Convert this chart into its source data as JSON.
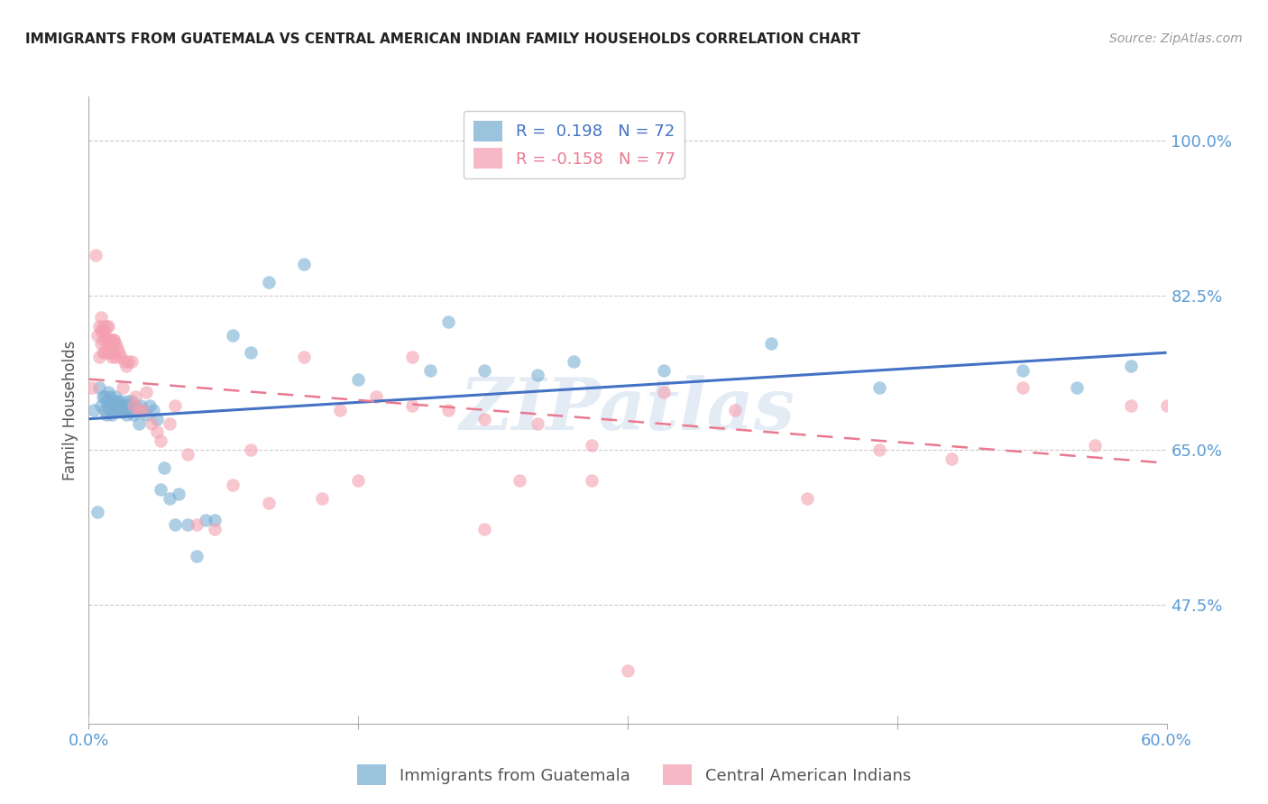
{
  "title": "IMMIGRANTS FROM GUATEMALA VS CENTRAL AMERICAN INDIAN FAMILY HOUSEHOLDS CORRELATION CHART",
  "source": "Source: ZipAtlas.com",
  "ylabel": "Family Households",
  "yticks_labels": [
    "100.0%",
    "82.5%",
    "65.0%",
    "47.5%"
  ],
  "ytick_vals": [
    1.0,
    0.825,
    0.65,
    0.475
  ],
  "ymin": 0.34,
  "ymax": 1.05,
  "xmin": 0.0,
  "xmax": 0.6,
  "xtick_vals": [
    0.0,
    0.15,
    0.3,
    0.45,
    0.6
  ],
  "xtick_labels": [
    "0.0%",
    "",
    "",
    "",
    "60.0%"
  ],
  "blue_color": "#7BAFD4",
  "pink_color": "#F4A0B0",
  "line_blue": "#4472C4",
  "line_pink": "#E97A90",
  "blue_line_x0": 0.0,
  "blue_line_x1": 0.6,
  "blue_line_y0": 0.685,
  "blue_line_y1": 0.76,
  "pink_line_x0": 0.0,
  "pink_line_x1": 0.6,
  "pink_line_y0": 0.73,
  "pink_line_y1": 0.635,
  "blue_scatter_x": [
    0.003,
    0.005,
    0.006,
    0.007,
    0.008,
    0.009,
    0.009,
    0.01,
    0.01,
    0.011,
    0.011,
    0.012,
    0.012,
    0.012,
    0.013,
    0.013,
    0.014,
    0.014,
    0.015,
    0.015,
    0.016,
    0.016,
    0.016,
    0.017,
    0.017,
    0.018,
    0.018,
    0.019,
    0.019,
    0.02,
    0.02,
    0.021,
    0.022,
    0.022,
    0.023,
    0.023,
    0.024,
    0.025,
    0.026,
    0.027,
    0.028,
    0.029,
    0.03,
    0.032,
    0.034,
    0.036,
    0.038,
    0.04,
    0.042,
    0.045,
    0.048,
    0.05,
    0.055,
    0.06,
    0.065,
    0.07,
    0.08,
    0.09,
    0.1,
    0.12,
    0.15,
    0.19,
    0.22,
    0.27,
    0.32,
    0.38,
    0.44,
    0.52,
    0.55,
    0.58,
    0.2,
    0.25
  ],
  "blue_scatter_y": [
    0.695,
    0.58,
    0.72,
    0.7,
    0.71,
    0.695,
    0.71,
    0.705,
    0.69,
    0.7,
    0.715,
    0.695,
    0.7,
    0.71,
    0.7,
    0.69,
    0.705,
    0.695,
    0.7,
    0.71,
    0.7,
    0.695,
    0.705,
    0.7,
    0.695,
    0.7,
    0.705,
    0.695,
    0.7,
    0.695,
    0.7,
    0.69,
    0.7,
    0.705,
    0.695,
    0.7,
    0.705,
    0.69,
    0.7,
    0.695,
    0.68,
    0.7,
    0.695,
    0.69,
    0.7,
    0.695,
    0.685,
    0.605,
    0.63,
    0.595,
    0.565,
    0.6,
    0.565,
    0.53,
    0.57,
    0.57,
    0.78,
    0.76,
    0.84,
    0.86,
    0.73,
    0.74,
    0.74,
    0.75,
    0.74,
    0.77,
    0.72,
    0.74,
    0.72,
    0.745,
    0.795,
    0.735
  ],
  "pink_scatter_x": [
    0.002,
    0.004,
    0.005,
    0.006,
    0.006,
    0.007,
    0.007,
    0.007,
    0.008,
    0.008,
    0.008,
    0.008,
    0.009,
    0.009,
    0.01,
    0.01,
    0.011,
    0.011,
    0.011,
    0.012,
    0.012,
    0.012,
    0.013,
    0.013,
    0.014,
    0.014,
    0.014,
    0.015,
    0.015,
    0.016,
    0.017,
    0.018,
    0.019,
    0.02,
    0.021,
    0.022,
    0.024,
    0.025,
    0.026,
    0.028,
    0.03,
    0.032,
    0.035,
    0.038,
    0.04,
    0.045,
    0.048,
    0.055,
    0.06,
    0.07,
    0.08,
    0.09,
    0.1,
    0.12,
    0.14,
    0.16,
    0.18,
    0.2,
    0.22,
    0.25,
    0.28,
    0.32,
    0.36,
    0.4,
    0.44,
    0.48,
    0.52,
    0.56,
    0.58,
    0.6,
    0.28,
    0.3,
    0.18,
    0.22,
    0.24,
    0.15,
    0.13
  ],
  "pink_scatter_y": [
    0.72,
    0.87,
    0.78,
    0.79,
    0.755,
    0.8,
    0.785,
    0.77,
    0.79,
    0.775,
    0.785,
    0.76,
    0.785,
    0.76,
    0.79,
    0.775,
    0.79,
    0.775,
    0.76,
    0.775,
    0.76,
    0.775,
    0.77,
    0.755,
    0.775,
    0.76,
    0.775,
    0.77,
    0.755,
    0.765,
    0.76,
    0.755,
    0.72,
    0.75,
    0.745,
    0.75,
    0.75,
    0.7,
    0.71,
    0.695,
    0.695,
    0.715,
    0.68,
    0.67,
    0.66,
    0.68,
    0.7,
    0.645,
    0.565,
    0.56,
    0.61,
    0.65,
    0.59,
    0.755,
    0.695,
    0.71,
    0.7,
    0.695,
    0.685,
    0.68,
    0.655,
    0.715,
    0.695,
    0.595,
    0.65,
    0.64,
    0.72,
    0.655,
    0.7,
    0.7,
    0.615,
    0.4,
    0.755,
    0.56,
    0.615,
    0.615,
    0.595
  ],
  "watermark": "ZIPatlas",
  "background_color": "#ffffff",
  "grid_color": "#cccccc",
  "tick_color": "#5B9BD5",
  "title_color": "#222222",
  "source_color": "#999999"
}
